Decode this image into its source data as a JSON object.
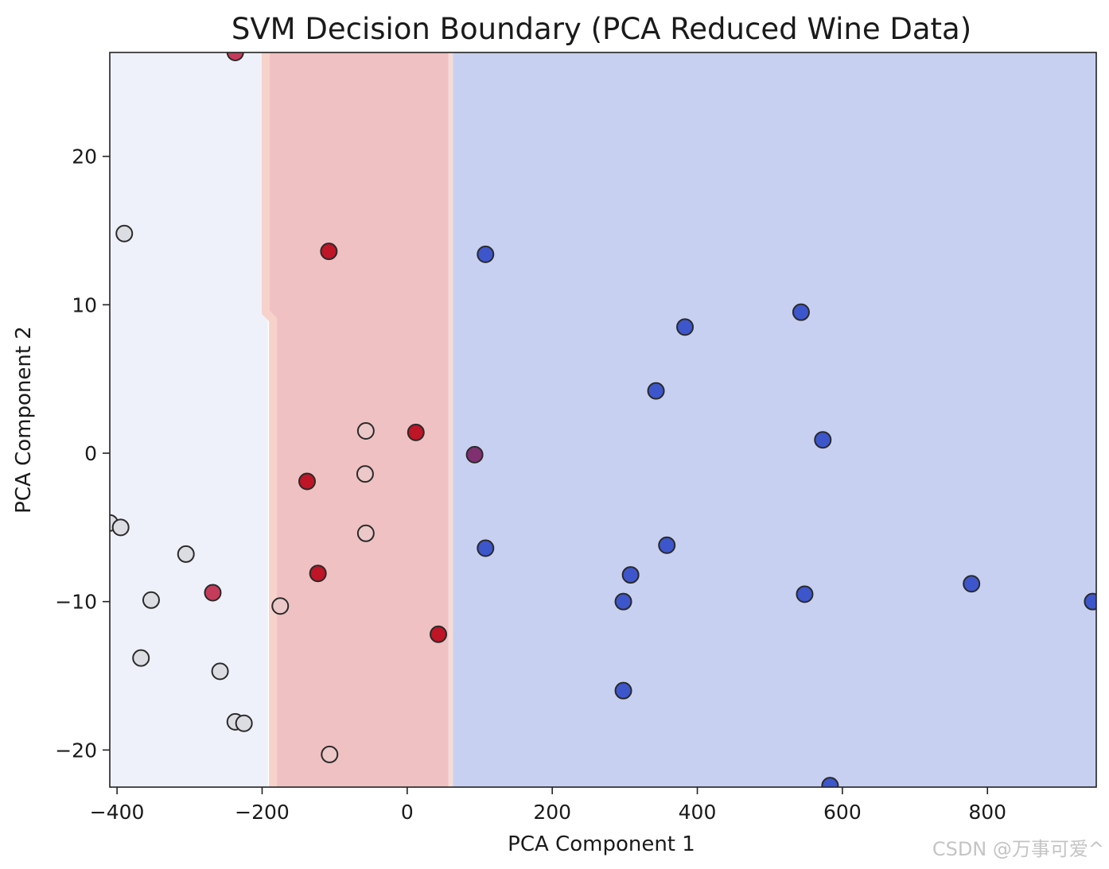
{
  "chart_data": {
    "type": "scatter",
    "title": "SVM Decision Boundary (PCA Reduced Wine Data)",
    "xlabel": "PCA Component 1",
    "ylabel": "PCA Component 2",
    "xlim": [
      -410,
      950
    ],
    "ylim": [
      -22.5,
      27
    ],
    "x_ticks": [
      -400,
      -200,
      0,
      200,
      400,
      600,
      800
    ],
    "y_ticks": [
      -20,
      -10,
      0,
      10,
      20
    ],
    "x_tick_labels": [
      "−400",
      "−200",
      "0",
      "200",
      "400",
      "600",
      "800"
    ],
    "y_tick_labels": [
      "−20",
      "−10",
      "0",
      "10",
      "20"
    ],
    "grid": false,
    "legend": "none",
    "regions": [
      {
        "class": "light",
        "color": "#eef1fa",
        "x_from": -410,
        "x_to": -192
      },
      {
        "class": "red",
        "color": "#f0c1c2",
        "boundary_top_x": -195,
        "boundary_step_upper_y": 9.5,
        "boundary_step_lower_y": 9.0,
        "boundary_bottom_x": -185,
        "x_to": 60
      },
      {
        "class": "blue",
        "color": "#c8d0f1",
        "x_from": 60,
        "x_to": 950
      }
    ],
    "point_colors": {
      "light": "#dcdde2",
      "pink": "#ecc8c8",
      "red": "#be1527",
      "crimson": "#c43c5a",
      "purple": "#803070",
      "blue": "#3d56cc"
    },
    "points": [
      {
        "x": -237,
        "y": 27,
        "c": "crimson"
      },
      {
        "x": -390,
        "y": 14.8,
        "c": "light"
      },
      {
        "x": -108,
        "y": 13.6,
        "c": "red"
      },
      {
        "x": 108,
        "y": 13.4,
        "c": "blue"
      },
      {
        "x": 543,
        "y": 9.5,
        "c": "blue"
      },
      {
        "x": 383,
        "y": 8.5,
        "c": "blue"
      },
      {
        "x": 343,
        "y": 4.2,
        "c": "blue"
      },
      {
        "x": -57,
        "y": 1.5,
        "c": "pink"
      },
      {
        "x": 12,
        "y": 1.4,
        "c": "red"
      },
      {
        "x": 573,
        "y": 0.9,
        "c": "blue"
      },
      {
        "x": 93,
        "y": -0.1,
        "c": "purple"
      },
      {
        "x": -138,
        "y": -1.9,
        "c": "red"
      },
      {
        "x": -58,
        "y": -1.4,
        "c": "pink"
      },
      {
        "x": -410,
        "y": -4.7,
        "c": "light"
      },
      {
        "x": -395,
        "y": -5.0,
        "c": "light"
      },
      {
        "x": -305,
        "y": -6.8,
        "c": "light"
      },
      {
        "x": -57,
        "y": -5.4,
        "c": "pink"
      },
      {
        "x": 108,
        "y": -6.4,
        "c": "blue"
      },
      {
        "x": 358,
        "y": -6.2,
        "c": "blue"
      },
      {
        "x": -123,
        "y": -8.1,
        "c": "red"
      },
      {
        "x": 308,
        "y": -8.2,
        "c": "blue"
      },
      {
        "x": -268,
        "y": -9.4,
        "c": "crimson"
      },
      {
        "x": -353,
        "y": -9.9,
        "c": "light"
      },
      {
        "x": -175,
        "y": -10.3,
        "c": "pink"
      },
      {
        "x": 298,
        "y": -10.0,
        "c": "blue"
      },
      {
        "x": 548,
        "y": -9.5,
        "c": "blue"
      },
      {
        "x": 778,
        "y": -8.8,
        "c": "blue"
      },
      {
        "x": 945,
        "y": -10.0,
        "c": "blue"
      },
      {
        "x": 43,
        "y": -12.2,
        "c": "red"
      },
      {
        "x": -367,
        "y": -13.8,
        "c": "light"
      },
      {
        "x": -258,
        "y": -14.7,
        "c": "light"
      },
      {
        "x": 298,
        "y": -16.0,
        "c": "blue"
      },
      {
        "x": -237,
        "y": -18.1,
        "c": "light"
      },
      {
        "x": -225,
        "y": -18.2,
        "c": "light"
      },
      {
        "x": -107,
        "y": -20.3,
        "c": "pink"
      },
      {
        "x": 583,
        "y": -22.4,
        "c": "blue"
      }
    ]
  },
  "watermark": "CSDN @万事可爱^"
}
